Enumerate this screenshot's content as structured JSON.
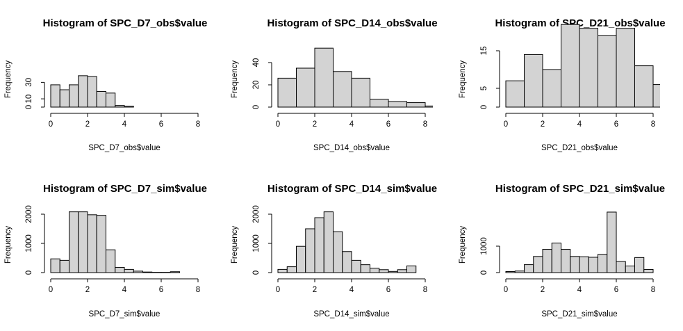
{
  "chart_data": [
    {
      "type": "bar",
      "title": "Histogram of SPC_D7_obs$value",
      "xlabel": "SPC_D7_obs$value",
      "ylabel": "Frequency",
      "bin_edges": [
        0,
        0.5,
        1,
        1.5,
        2,
        2.5,
        3,
        3.5,
        4,
        4.5
      ],
      "values": [
        27,
        21,
        27,
        38,
        37,
        19,
        17,
        2,
        1
      ],
      "xlim": [
        0,
        8
      ],
      "ylim": [
        0,
        40
      ],
      "xticks": [
        "0",
        "2",
        "4",
        "6",
        "8"
      ],
      "yticks": [
        "0",
        "10",
        "30"
      ],
      "grid": false
    },
    {
      "type": "bar",
      "title": "Histogram of SPC_D14_obs$value",
      "xlabel": "SPC_D14_obs$value",
      "ylabel": "Frequency",
      "bin_edges": [
        0,
        1,
        2,
        3,
        4,
        5,
        6,
        7,
        8,
        9
      ],
      "values": [
        26,
        35,
        53,
        32,
        26,
        7,
        5,
        4,
        1
      ],
      "xlim": [
        0,
        8
      ],
      "ylim": [
        0,
        55
      ],
      "xticks": [
        "0",
        "2",
        "4",
        "6",
        "8"
      ],
      "yticks": [
        "0",
        "20",
        "40"
      ],
      "grid": false
    },
    {
      "type": "bar",
      "title": "Histogram of SPC_D21_obs$value",
      "xlabel": "SPC_D21_obs$value",
      "ylabel": "Frequency",
      "bin_edges": [
        0,
        1,
        2,
        3,
        4,
        5,
        6,
        7,
        8,
        9
      ],
      "values": [
        7,
        14,
        10,
        22,
        21,
        19,
        21,
        11,
        6
      ],
      "xlim": [
        0,
        8
      ],
      "ylim": [
        0,
        23
      ],
      "xticks": [
        "0",
        "2",
        "4",
        "6",
        "8"
      ],
      "yticks": [
        "0",
        "5",
        "15"
      ],
      "grid": false
    },
    {
      "type": "bar",
      "title": "Histogram of SPC_D7_sim$value",
      "xlabel": "SPC_D7_sim$value",
      "ylabel": "Frequency",
      "bin_edges": [
        0,
        0.5,
        1,
        1.5,
        2,
        2.5,
        3,
        3.5,
        4,
        4.5,
        5,
        5.5,
        6,
        6.5,
        7
      ],
      "values": [
        470,
        420,
        2080,
        2080,
        1980,
        1960,
        780,
        180,
        110,
        50,
        20,
        10,
        10,
        30
      ],
      "xlim": [
        0,
        8
      ],
      "ylim": [
        0,
        2200
      ],
      "xticks": [
        "0",
        "2",
        "4",
        "6",
        "8"
      ],
      "yticks": [
        "0",
        "1000",
        "2000"
      ],
      "grid": false
    },
    {
      "type": "bar",
      "title": "Histogram of SPC_D14_sim$value",
      "xlabel": "SPC_D14_sim$value",
      "ylabel": "Frequency",
      "bin_edges": [
        0,
        0.5,
        1,
        1.5,
        2,
        2.5,
        3,
        3.5,
        4,
        4.5,
        5,
        5.5,
        6,
        6.5,
        7,
        7.5
      ],
      "values": [
        110,
        200,
        900,
        1500,
        1880,
        2080,
        1400,
        720,
        420,
        270,
        150,
        100,
        40,
        100,
        230
      ],
      "xlim": [
        0,
        8
      ],
      "ylim": [
        0,
        2200
      ],
      "xticks": [
        "0",
        "2",
        "4",
        "6",
        "8"
      ],
      "yticks": [
        "0",
        "1000",
        "2000"
      ],
      "grid": false
    },
    {
      "type": "bar",
      "title": "Histogram of SPC_D21_sim$value",
      "xlabel": "SPC_D21_sim$value",
      "ylabel": "Frequency",
      "bin_edges": [
        0,
        0.5,
        1,
        1.5,
        2,
        2.5,
        3,
        3.5,
        4,
        4.5,
        5,
        5.5,
        6,
        6.5,
        7,
        7.5,
        8
      ],
      "values": [
        40,
        60,
        300,
        610,
        880,
        1120,
        880,
        610,
        600,
        580,
        690,
        2290,
        420,
        250,
        570,
        120
      ],
      "xlim": [
        0,
        8
      ],
      "ylim": [
        0,
        2400
      ],
      "xticks": [
        "0",
        "2",
        "4",
        "6",
        "8"
      ],
      "yticks": [
        "0",
        "1000"
      ],
      "grid": false
    }
  ]
}
